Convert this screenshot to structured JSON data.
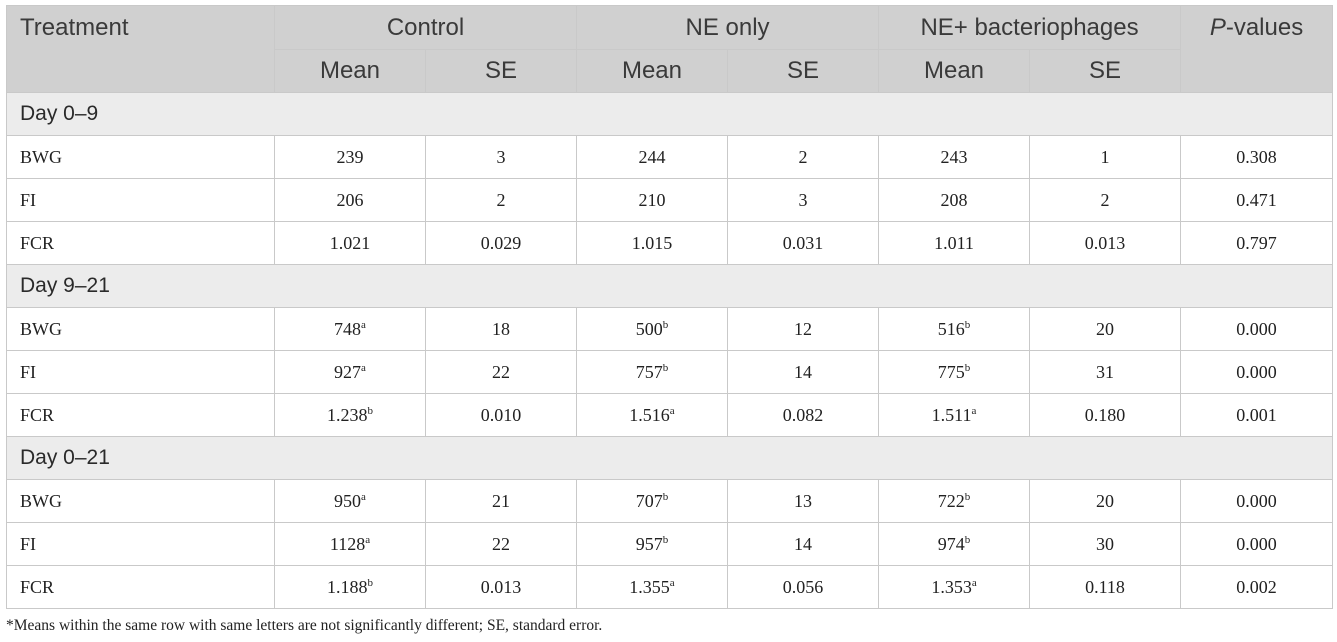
{
  "header": {
    "treatment": "Treatment",
    "groups": [
      "Control",
      "NE only",
      "NE+ bacteriophages"
    ],
    "pvalues_italic": "P",
    "pvalues_rest": "-values",
    "mean": "Mean",
    "se": "SE"
  },
  "sections": [
    {
      "label": "Day 0–9",
      "rows": [
        {
          "label": "BWG",
          "c_mean": "239",
          "c_mean_sup": "",
          "c_se": "3",
          "ne_mean": "244",
          "ne_mean_sup": "",
          "ne_se": "2",
          "nb_mean": "243",
          "nb_mean_sup": "",
          "nb_se": "1",
          "p": "0.308"
        },
        {
          "label": "FI",
          "c_mean": "206",
          "c_mean_sup": "",
          "c_se": "2",
          "ne_mean": "210",
          "ne_mean_sup": "",
          "ne_se": "3",
          "nb_mean": "208",
          "nb_mean_sup": "",
          "nb_se": "2",
          "p": "0.471"
        },
        {
          "label": "FCR",
          "c_mean": "1.021",
          "c_mean_sup": "",
          "c_se": "0.029",
          "ne_mean": "1.015",
          "ne_mean_sup": "",
          "ne_se": "0.031",
          "nb_mean": "1.011",
          "nb_mean_sup": "",
          "nb_se": "0.013",
          "p": "0.797"
        }
      ]
    },
    {
      "label": "Day 9–21",
      "rows": [
        {
          "label": "BWG",
          "c_mean": "748",
          "c_mean_sup": "a",
          "c_se": "18",
          "ne_mean": "500",
          "ne_mean_sup": "b",
          "ne_se": "12",
          "nb_mean": "516",
          "nb_mean_sup": "b",
          "nb_se": "20",
          "p": "0.000"
        },
        {
          "label": "FI",
          "c_mean": "927",
          "c_mean_sup": "a",
          "c_se": "22",
          "ne_mean": "757",
          "ne_mean_sup": "b",
          "ne_se": "14",
          "nb_mean": "775",
          "nb_mean_sup": "b",
          "nb_se": "31",
          "p": "0.000"
        },
        {
          "label": "FCR",
          "c_mean": "1.238",
          "c_mean_sup": "b",
          "c_se": "0.010",
          "ne_mean": "1.516",
          "ne_mean_sup": "a",
          "ne_se": "0.082",
          "nb_mean": "1.511",
          "nb_mean_sup": "a",
          "nb_se": "0.180",
          "p": "0.001"
        }
      ]
    },
    {
      "label": "Day 0–21",
      "rows": [
        {
          "label": "BWG",
          "c_mean": "950",
          "c_mean_sup": "a",
          "c_se": "21",
          "ne_mean": "707",
          "ne_mean_sup": "b",
          "ne_se": "13",
          "nb_mean": "722",
          "nb_mean_sup": "b",
          "nb_se": "20",
          "p": "0.000"
        },
        {
          "label": "FI",
          "c_mean": "1128",
          "c_mean_sup": "a",
          "c_se": "22",
          "ne_mean": "957",
          "ne_mean_sup": "b",
          "ne_se": "14",
          "nb_mean": "974",
          "nb_mean_sup": "b",
          "nb_se": "30",
          "p": "0.000"
        },
        {
          "label": "FCR",
          "c_mean": "1.188",
          "c_mean_sup": "b",
          "c_se": "0.013",
          "ne_mean": "1.355",
          "ne_mean_sup": "a",
          "ne_se": "0.056",
          "nb_mean": "1.353",
          "nb_mean_sup": "a",
          "nb_se": "0.118",
          "p": "0.002"
        }
      ]
    }
  ],
  "footnote": "*Means within the same row with same letters are not significantly different; SE, standard error."
}
